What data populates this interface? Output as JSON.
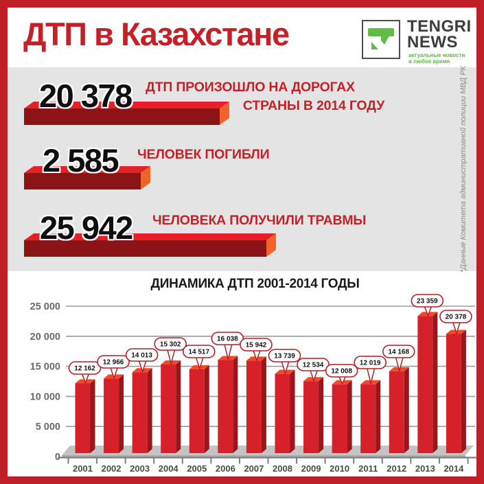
{
  "header": {
    "title": "ДТП в Казахстане",
    "logo": {
      "brand_line1": "TENGRI",
      "brand_line2": "NEWS",
      "tagline_line1": "актуальные новости",
      "tagline_line2": "в любое время"
    }
  },
  "stats": [
    {
      "value": "20 378",
      "label_lines": [
        "ДТП ПРОИЗОШЛО НА ДОРОГАХ",
        "СТРАНЫ В 2014 ГОДУ"
      ]
    },
    {
      "value": "2 585",
      "label_lines": [
        "ЧЕЛОВЕК ПОГИБЛИ"
      ]
    },
    {
      "value": "25 942",
      "label_lines": [
        "ЧЕЛОВЕКА ПОЛУЧИЛИ ТРАВМЫ"
      ]
    }
  ],
  "source_note": "*Данные Комитета административной полиции МВД РК",
  "chart_data": {
    "type": "bar",
    "title": "ДИНАМИКА ДТП 2001-2014 ГОДЫ",
    "categories": [
      "2001",
      "2002",
      "2003",
      "2004",
      "2005",
      "2006",
      "2007",
      "2008",
      "2009",
      "2010",
      "2011",
      "2012",
      "2013",
      "2014"
    ],
    "values": [
      12162,
      12966,
      14013,
      15302,
      14517,
      16038,
      15942,
      13739,
      12534,
      12008,
      12019,
      14168,
      23359,
      20378
    ],
    "value_labels": [
      "12 162",
      "12 966",
      "14 013",
      "15 302",
      "14 517",
      "16 038",
      "15 942",
      "13 739",
      "12 534",
      "12 008",
      "12 019",
      "14 168",
      "23 359",
      "20 378"
    ],
    "xlabel": "",
    "ylabel": "",
    "ylim": [
      0,
      25000
    ],
    "ytick_step": 5000,
    "ytick_labels": [
      "0",
      "5 000",
      "10 000",
      "15 000",
      "20 000",
      "25 000"
    ],
    "grid": true,
    "legend": "none",
    "bubble_y": [
      536,
      527,
      517,
      501,
      512,
      493,
      502,
      518,
      531,
      540,
      528,
      512,
      438,
      461
    ]
  },
  "colors": {
    "frame_red": "#bf2026",
    "accent_red": "#c32127",
    "panel_gray": "#e4e4e4",
    "stat_bar_front": "#8c1419",
    "stat_bar_top": "#e32227",
    "stat_bar_side": "#f2622a",
    "logo_green": "#62bb46",
    "chart_bar_front": "#d6202a",
    "chart_bar_side": "#9b151b",
    "chart_bar_top": "#f1492a",
    "bubble_border": "#b01f24",
    "grid_gray": "#9a9a9a",
    "axis_gray": "#7d7d7d",
    "platform_gray": "#c4c4c4"
  }
}
